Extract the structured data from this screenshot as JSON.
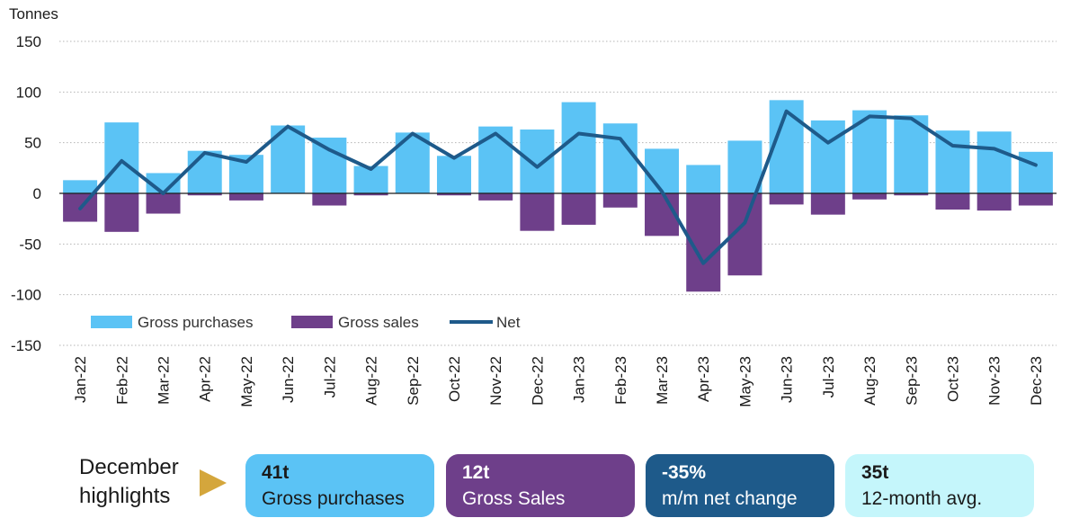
{
  "chart_data": {
    "type": "bar+line",
    "ylabel": "Tonnes",
    "ylim": [
      -150,
      150
    ],
    "yticks": [
      150,
      100,
      50,
      0,
      -50,
      -100,
      -150
    ],
    "categories": [
      "Jan-22",
      "Feb-22",
      "Mar-22",
      "Apr-22",
      "May-22",
      "Jun-22",
      "Jul-22",
      "Aug-22",
      "Sep-22",
      "Oct-22",
      "Nov-22",
      "Dec-22",
      "Jan-23",
      "Feb-23",
      "Mar-23",
      "Apr-23",
      "May-23",
      "Jun-23",
      "Jul-23",
      "Aug-23",
      "Sep-23",
      "Oct-23",
      "Nov-23",
      "Dec-23"
    ],
    "series": [
      {
        "name": "Gross purchases",
        "kind": "bar",
        "color": "#5bc3f5",
        "values": [
          13,
          70,
          20,
          42,
          38,
          67,
          55,
          27,
          60,
          37,
          66,
          63,
          90,
          69,
          44,
          28,
          52,
          92,
          72,
          82,
          77,
          62,
          61,
          41
        ]
      },
      {
        "name": "Gross sales",
        "kind": "bar",
        "color": "#6e3f8a",
        "values": [
          -28,
          -38,
          -20,
          -2,
          -7,
          0,
          -12,
          -2,
          0,
          -2,
          -7,
          -37,
          -31,
          -14,
          -42,
          -97,
          -81,
          -11,
          -21,
          -6,
          -2,
          -16,
          -17,
          -12
        ]
      },
      {
        "name": "Net",
        "kind": "line",
        "color": "#1e5a8a",
        "values": [
          -15,
          32,
          0,
          40,
          31,
          66,
          43,
          24,
          59,
          35,
          59,
          26,
          59,
          54,
          2,
          -69,
          -29,
          81,
          50,
          76,
          74,
          47,
          44,
          28
        ]
      }
    ],
    "legend": [
      "Gross purchases",
      "Gross sales",
      "Net"
    ],
    "legend_position": "bottom-left inside",
    "grid": "horizontal dotted"
  },
  "highlights": {
    "heading_line1": "December",
    "heading_line2": "highlights",
    "cards": [
      {
        "value": "41t",
        "label": "Gross purchases",
        "bg": "#5bc3f5",
        "fg": "#1a1a1a"
      },
      {
        "value": "12t",
        "label": "Gross Sales",
        "bg": "#6e3f8a",
        "fg": "#ffffff"
      },
      {
        "value": "-35%",
        "label": "m/m net change",
        "bg": "#1e5a8a",
        "fg": "#ffffff"
      },
      {
        "value": "35t",
        "label": "12-month avg.",
        "bg": "#c5f6fb",
        "fg": "#1a1a1a"
      }
    ]
  }
}
